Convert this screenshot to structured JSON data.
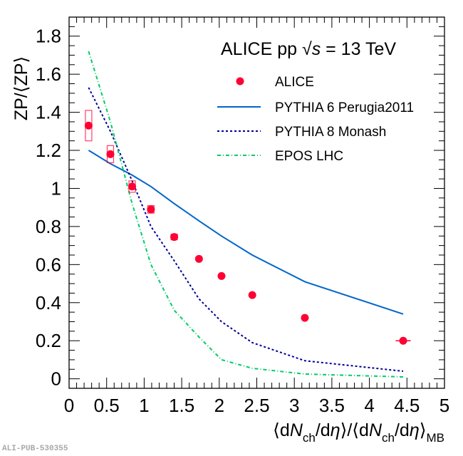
{
  "chart_data": {
    "type": "scatter",
    "title": "ALICE pp √s = 13 TeV",
    "title_parts": {
      "prefix": "ALICE pp ",
      "sqrt": "√",
      "s": "s",
      "suffix": " = 13 TeV"
    },
    "xlabel": "⟨dNch/dη⟩/⟨dNch/dη⟩MB",
    "xlabel_parts": [
      "⟨d",
      "N",
      "ch",
      "/d",
      "η",
      "⟩/⟨d",
      "N",
      "ch",
      "/d",
      "η",
      "⟩",
      "MB"
    ],
    "ylabel": "ZP/⟨ZP⟩",
    "xlim": [
      0,
      5
    ],
    "ylim": [
      -0.05,
      1.9
    ],
    "xticks": [
      0,
      0.5,
      1,
      1.5,
      2,
      2.5,
      3,
      3.5,
      4,
      4.5,
      5
    ],
    "xtick_labels": [
      "0",
      "0.5",
      "1",
      "1.5",
      "2",
      "2.5",
      "3",
      "3.5",
      "4",
      "4.5",
      "5"
    ],
    "yticks": [
      0,
      0.2,
      0.4,
      0.6,
      0.8,
      1,
      1.2,
      1.4,
      1.6,
      1.8
    ],
    "ytick_labels": [
      "0",
      "0.2",
      "0.4",
      "0.6",
      "0.8",
      "1",
      "1.2",
      "1.4",
      "1.6",
      "1.8"
    ],
    "grid": false,
    "legend_position": "top-right",
    "x": [
      0.26,
      0.55,
      0.84,
      1.09,
      1.4,
      1.73,
      2.03,
      2.44,
      3.14,
      4.45
    ],
    "series": [
      {
        "name": "ALICE",
        "style": "marker",
        "color": "#ff0033",
        "values": [
          1.33,
          1.18,
          1.01,
          0.89,
          0.745,
          0.63,
          0.54,
          0.44,
          0.32,
          0.2
        ],
        "syst_err": [
          0.08,
          0.045,
          0.03,
          0.02,
          0.015,
          0.012,
          0.01,
          0.01,
          0.008,
          0.006
        ],
        "x_err": [
          0,
          0,
          0,
          0,
          0,
          0,
          0,
          0,
          0.05,
          0.1
        ]
      },
      {
        "name": "PYTHIA 6 Perugia2011",
        "style": "solid",
        "color": "#0066cc",
        "values": [
          1.2,
          1.13,
          1.07,
          1.01,
          0.92,
          0.83,
          0.75,
          0.65,
          0.51,
          0.34
        ]
      },
      {
        "name": "PYTHIA 8 Monash",
        "style": "dashed",
        "color": "#000099",
        "values": [
          1.53,
          1.3,
          1.04,
          0.8,
          0.62,
          0.42,
          0.3,
          0.19,
          0.095,
          0.04
        ]
      },
      {
        "name": "EPOS LHC",
        "style": "dashdot",
        "color": "#00cc66",
        "values": [
          1.72,
          1.35,
          0.92,
          0.6,
          0.36,
          0.22,
          0.1,
          0.055,
          0.025,
          0.01
        ]
      }
    ]
  },
  "watermark": "ALI-PUB-530355"
}
